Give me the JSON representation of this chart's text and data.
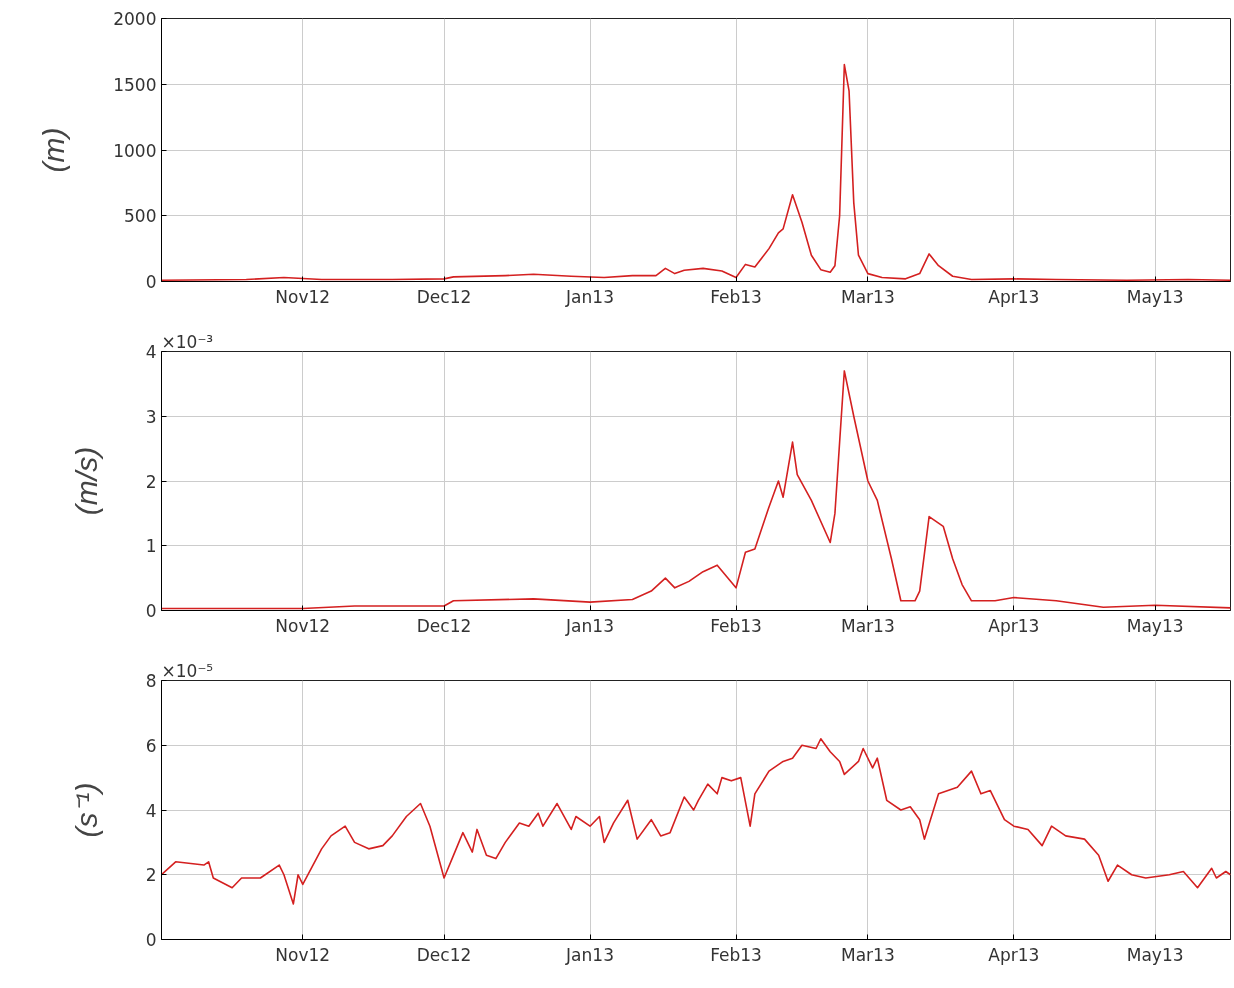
{
  "chart_data": [
    {
      "type": "line",
      "ylabel": "(m)",
      "grid": true,
      "xlim": [
        "2012-10-02",
        "2013-05-17"
      ],
      "xticks": [
        {
          "value": "2012-11-01",
          "label": "Nov12"
        },
        {
          "value": "2012-12-01",
          "label": "Dec12"
        },
        {
          "value": "2013-01-01",
          "label": "Jan13"
        },
        {
          "value": "2013-02-01",
          "label": "Feb13"
        },
        {
          "value": "2013-03-01",
          "label": "Mar13"
        },
        {
          "value": "2013-04-01",
          "label": "Apr13"
        },
        {
          "value": "2013-05-01",
          "label": "May13"
        }
      ],
      "ylim": [
        0,
        2000
      ],
      "yticks": [
        0,
        500,
        1000,
        1500,
        2000
      ],
      "x": [
        "2012-10-02",
        "2012-10-20",
        "2012-10-28",
        "2012-11-05",
        "2012-11-20",
        "2012-12-01",
        "2012-12-03",
        "2012-12-14",
        "2012-12-20",
        "2012-12-28",
        "2013-01-04",
        "2013-01-10",
        "2013-01-15",
        "2013-01-17",
        "2013-01-19",
        "2013-01-21",
        "2013-01-25",
        "2013-01-29",
        "2013-02-01",
        "2013-02-03",
        "2013-02-05",
        "2013-02-08",
        "2013-02-10",
        "2013-02-11",
        "2013-02-13",
        "2013-02-15",
        "2013-02-17",
        "2013-02-19",
        "2013-02-21",
        "2013-02-22",
        "2013-02-23",
        "2013-02-24",
        "2013-02-25",
        "2013-02-26",
        "2013-02-27",
        "2013-03-01",
        "2013-03-04",
        "2013-03-09",
        "2013-03-12",
        "2013-03-14",
        "2013-03-16",
        "2013-03-19",
        "2013-03-23",
        "2013-04-01",
        "2013-04-10",
        "2013-04-25",
        "2013-05-08",
        "2013-05-17"
      ],
      "series": [
        {
          "color": "#d42020",
          "values": [
            10,
            15,
            30,
            15,
            15,
            20,
            35,
            45,
            55,
            40,
            30,
            45,
            45,
            100,
            60,
            85,
            100,
            80,
            30,
            130,
            110,
            250,
            370,
            400,
            660,
            450,
            200,
            90,
            70,
            120,
            500,
            1650,
            1450,
            600,
            200,
            60,
            30,
            20,
            60,
            210,
            120,
            40,
            15,
            20,
            15,
            10,
            15,
            10
          ]
        }
      ]
    },
    {
      "type": "line",
      "ylabel": "(m/s)",
      "grid": true,
      "annotations": [
        "×10⁻³"
      ],
      "xlim": [
        "2012-10-02",
        "2013-05-17"
      ],
      "xticks": [
        {
          "value": "2012-11-01",
          "label": "Nov12"
        },
        {
          "value": "2012-12-01",
          "label": "Dec12"
        },
        {
          "value": "2013-01-01",
          "label": "Jan13"
        },
        {
          "value": "2013-02-01",
          "label": "Feb13"
        },
        {
          "value": "2013-03-01",
          "label": "Mar13"
        },
        {
          "value": "2013-04-01",
          "label": "Apr13"
        },
        {
          "value": "2013-05-01",
          "label": "May13"
        }
      ],
      "ylim": [
        0,
        4
      ],
      "yticks": [
        0,
        1,
        2,
        3,
        4
      ],
      "x": [
        "2012-10-02",
        "2012-11-01",
        "2012-11-12",
        "2012-12-01",
        "2012-12-03",
        "2012-12-20",
        "2013-01-01",
        "2013-01-10",
        "2013-01-14",
        "2013-01-17",
        "2013-01-19",
        "2013-01-22",
        "2013-01-25",
        "2013-01-28",
        "2013-02-01",
        "2013-02-03",
        "2013-02-05",
        "2013-02-08",
        "2013-02-10",
        "2013-02-11",
        "2013-02-13",
        "2013-02-14",
        "2013-02-17",
        "2013-02-21",
        "2013-02-22",
        "2013-02-24",
        "2013-02-26",
        "2013-03-01",
        "2013-03-03",
        "2013-03-06",
        "2013-03-08",
        "2013-03-11",
        "2013-03-12",
        "2013-03-14",
        "2013-03-17",
        "2013-03-19",
        "2013-03-21",
        "2013-03-23",
        "2013-03-28",
        "2013-04-01",
        "2013-04-10",
        "2013-04-20",
        "2013-05-01",
        "2013-05-17"
      ],
      "series": [
        {
          "color": "#d42020",
          "values": [
            0.03,
            0.03,
            0.07,
            0.07,
            0.15,
            0.18,
            0.13,
            0.17,
            0.3,
            0.5,
            0.35,
            0.45,
            0.6,
            0.7,
            0.35,
            0.9,
            0.95,
            1.6,
            2.0,
            1.75,
            2.6,
            2.1,
            1.7,
            1.05,
            1.5,
            3.7,
            3.0,
            2.0,
            1.7,
            0.8,
            0.15,
            0.15,
            0.3,
            1.45,
            1.3,
            0.8,
            0.4,
            0.15,
            0.15,
            0.2,
            0.15,
            0.05,
            0.08,
            0.04
          ]
        }
      ]
    },
    {
      "type": "line",
      "ylabel": "(s⁻¹)",
      "grid": true,
      "annotations": [
        "×10⁻⁵"
      ],
      "xlim": [
        "2012-10-02",
        "2013-05-17"
      ],
      "xticks": [
        {
          "value": "2012-11-01",
          "label": "Nov12"
        },
        {
          "value": "2012-12-01",
          "label": "Dec12"
        },
        {
          "value": "2013-01-01",
          "label": "Jan13"
        },
        {
          "value": "2013-02-01",
          "label": "Feb13"
        },
        {
          "value": "2013-03-01",
          "label": "Mar13"
        },
        {
          "value": "2013-04-01",
          "label": "Apr13"
        },
        {
          "value": "2013-05-01",
          "label": "May13"
        }
      ],
      "ylim": [
        0,
        8
      ],
      "yticks": [
        0,
        2,
        4,
        6,
        8
      ],
      "x": [
        "2012-10-02",
        "2012-10-05",
        "2012-10-11",
        "2012-10-12",
        "2012-10-13",
        "2012-10-17",
        "2012-10-19",
        "2012-10-23",
        "2012-10-27",
        "2012-10-28",
        "2012-10-30",
        "2012-10-31",
        "2012-11-01",
        "2012-11-05",
        "2012-11-07",
        "2012-11-10",
        "2012-11-12",
        "2012-11-15",
        "2012-11-18",
        "2012-11-20",
        "2012-11-23",
        "2012-11-26",
        "2012-11-28",
        "2012-12-01",
        "2012-12-03",
        "2012-12-05",
        "2012-12-07",
        "2012-12-08",
        "2012-12-10",
        "2012-12-12",
        "2012-12-14",
        "2012-12-17",
        "2012-12-19",
        "2012-12-21",
        "2012-12-22",
        "2012-12-25",
        "2012-12-28",
        "2012-12-29",
        "2013-01-01",
        "2013-01-03",
        "2013-01-04",
        "2013-01-06",
        "2013-01-09",
        "2013-01-11",
        "2013-01-14",
        "2013-01-16",
        "2013-01-18",
        "2013-01-21",
        "2013-01-23",
        "2013-01-24",
        "2013-01-26",
        "2013-01-28",
        "2013-01-29",
        "2013-01-31",
        "2013-02-02",
        "2013-02-04",
        "2013-02-05",
        "2013-02-08",
        "2013-02-11",
        "2013-02-13",
        "2013-02-15",
        "2013-02-18",
        "2013-02-19",
        "2013-02-21",
        "2013-02-23",
        "2013-02-24",
        "2013-02-27",
        "2013-02-28",
        "2013-03-02",
        "2013-03-03",
        "2013-03-05",
        "2013-03-08",
        "2013-03-10",
        "2013-03-12",
        "2013-03-13",
        "2013-03-16",
        "2013-03-18",
        "2013-03-20",
        "2013-03-23",
        "2013-03-25",
        "2013-03-27",
        "2013-03-30",
        "2013-04-01",
        "2013-04-04",
        "2013-04-07",
        "2013-04-09",
        "2013-04-12",
        "2013-04-16",
        "2013-04-19",
        "2013-04-21",
        "2013-04-23",
        "2013-04-26",
        "2013-04-29",
        "2013-05-04",
        "2013-05-07",
        "2013-05-10",
        "2013-05-13",
        "2013-05-14",
        "2013-05-16",
        "2013-05-17"
      ],
      "series": [
        {
          "color": "#d42020",
          "values": [
            2.0,
            2.4,
            2.3,
            2.4,
            1.9,
            1.6,
            1.9,
            1.9,
            2.3,
            2.0,
            1.1,
            2.0,
            1.7,
            2.8,
            3.2,
            3.5,
            3.0,
            2.8,
            2.9,
            3.2,
            3.8,
            4.2,
            3.5,
            1.9,
            2.6,
            3.3,
            2.7,
            3.4,
            2.6,
            2.5,
            3.0,
            3.6,
            3.5,
            3.9,
            3.5,
            4.2,
            3.4,
            3.8,
            3.5,
            3.8,
            3.0,
            3.6,
            4.3,
            3.1,
            3.7,
            3.2,
            3.3,
            4.4,
            4.0,
            4.3,
            4.8,
            4.5,
            5.0,
            4.9,
            5.0,
            3.5,
            4.5,
            5.2,
            5.5,
            5.6,
            6.0,
            5.9,
            6.2,
            5.8,
            5.5,
            5.1,
            5.5,
            5.9,
            5.3,
            5.6,
            4.3,
            4.0,
            4.1,
            3.7,
            3.1,
            4.5,
            4.6,
            4.7,
            5.2,
            4.5,
            4.6,
            3.7,
            3.5,
            3.4,
            2.9,
            3.5,
            3.2,
            3.1,
            2.6,
            1.8,
            2.3,
            2.0,
            1.9,
            2.0,
            2.1,
            1.6,
            2.2,
            1.9,
            2.1,
            2.0
          ]
        }
      ]
    }
  ]
}
